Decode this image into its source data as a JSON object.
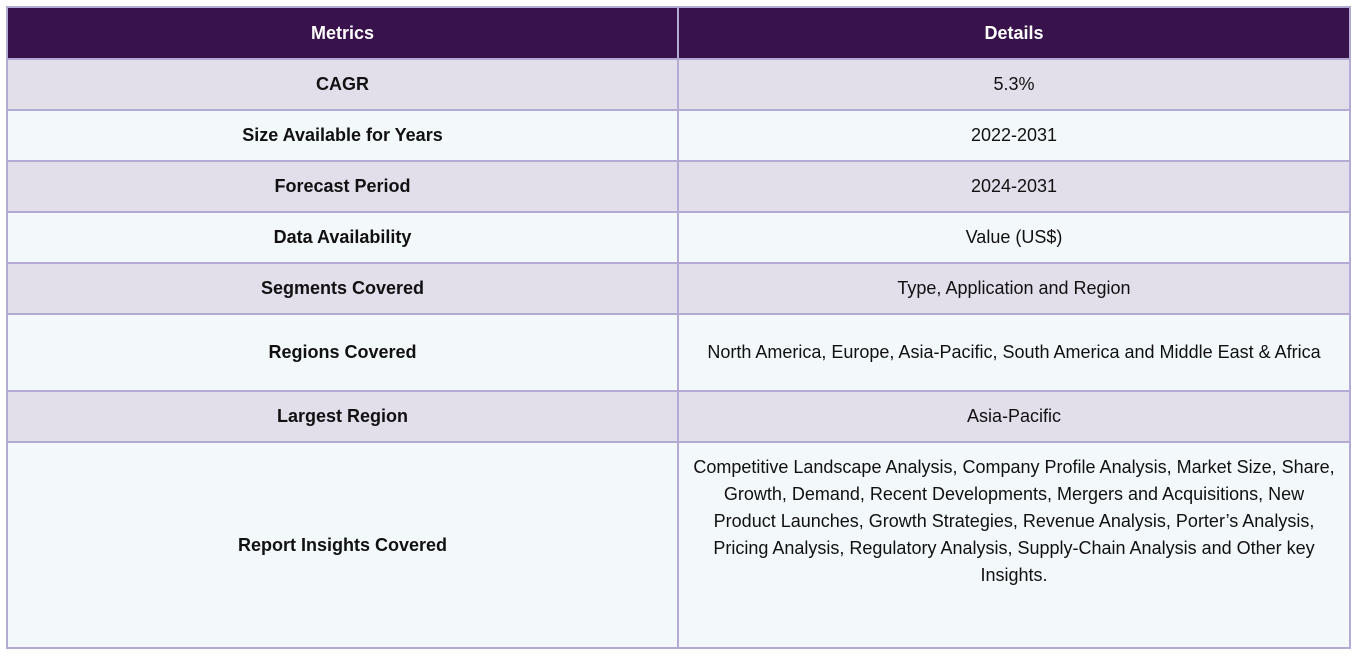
{
  "table": {
    "headers": [
      "Metrics",
      "Details"
    ],
    "rows": [
      {
        "metric": "CAGR",
        "detail": "5.3%"
      },
      {
        "metric": "Size Available for Years",
        "detail": "2022-2031"
      },
      {
        "metric": "Forecast Period",
        "detail": "2024-2031"
      },
      {
        "metric": "Data Availability",
        "detail": "Value (US$)"
      },
      {
        "metric": "Segments Covered",
        "detail": "Type, Application and Region"
      },
      {
        "metric": "Regions Covered",
        "detail": "North America, Europe, Asia-Pacific, South America and Middle East & Africa"
      },
      {
        "metric": "Largest Region",
        "detail": "Asia-Pacific"
      },
      {
        "metric": "Report Insights Covered",
        "detail": "Competitive Landscape Analysis, Company Profile Analysis, Market Size, Share, Growth, Demand, Recent Developments, Mergers and Acquisitions, New Product Launches, Growth Strategies, Revenue Analysis, Porter’s Analysis, Pricing Analysis, Regulatory Analysis, Supply-Chain Analysis and Other key Insights."
      }
    ]
  },
  "colors": {
    "header_bg": "#38124b",
    "header_text": "#ffffff",
    "row_odd_bg": "#e2dfeb",
    "row_even_bg": "#f3f8fb",
    "border": "#b3abd3"
  }
}
